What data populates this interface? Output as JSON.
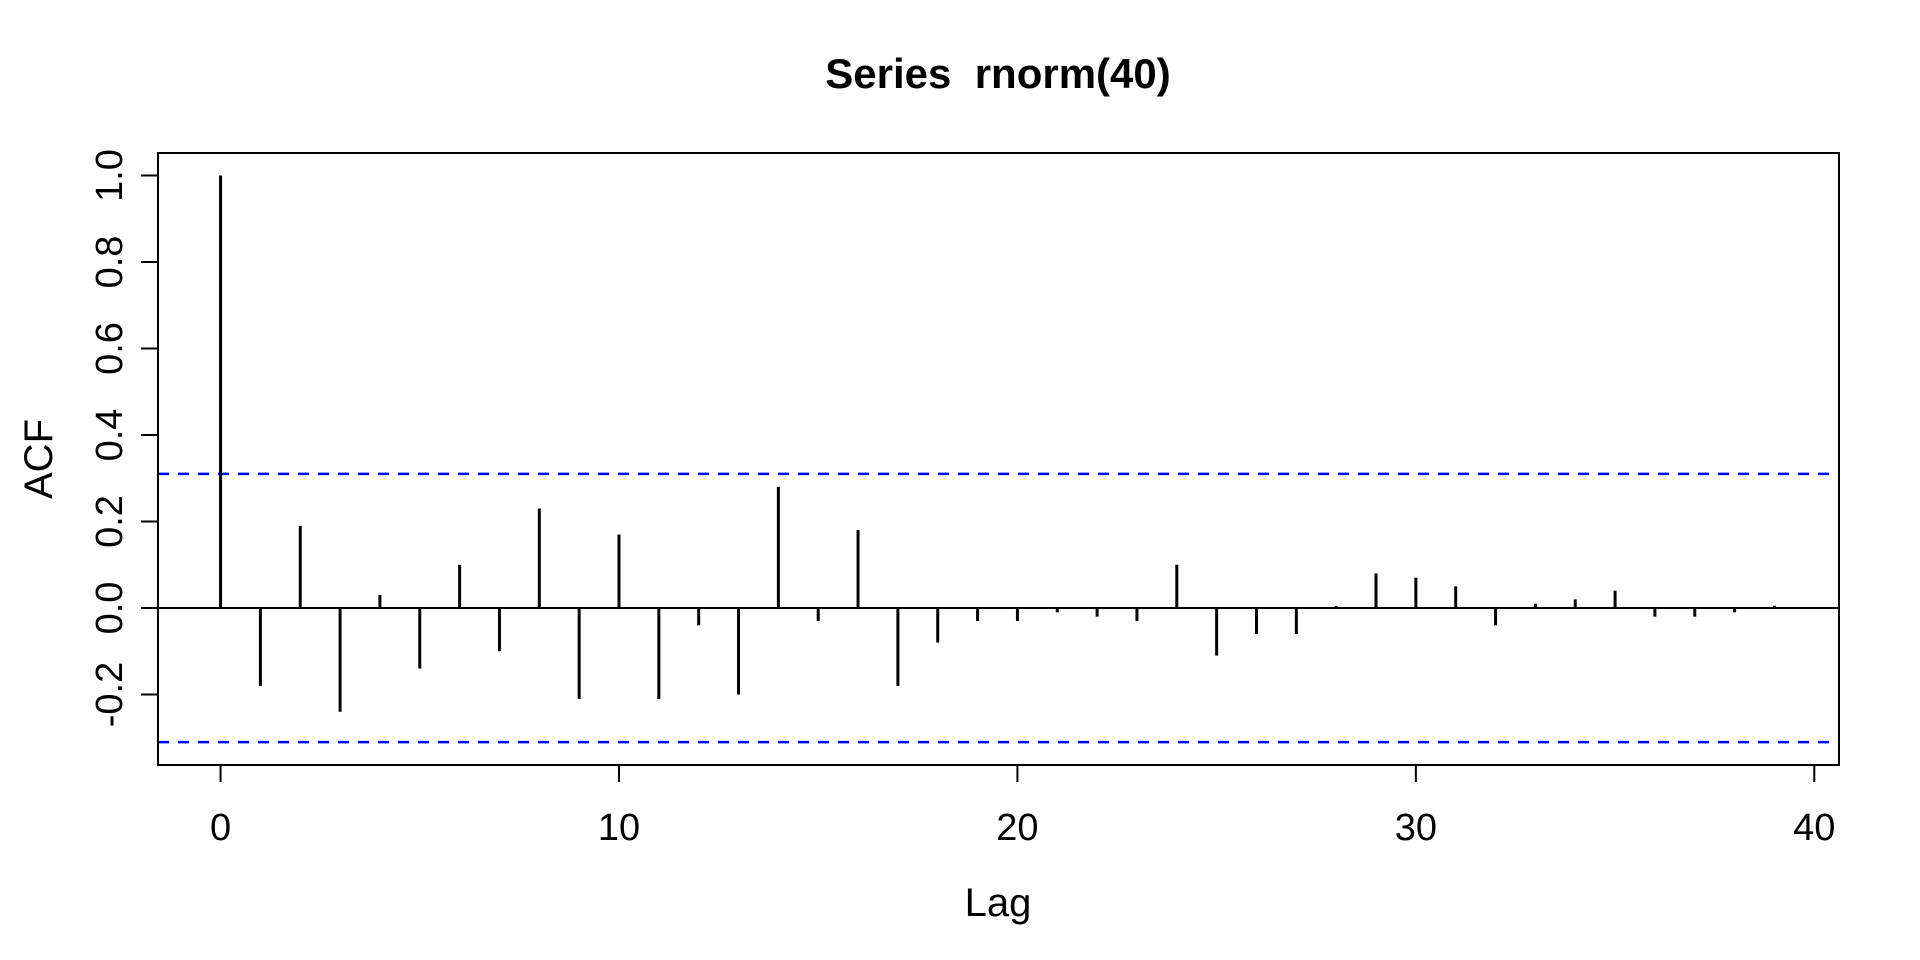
{
  "chart_data": {
    "type": "bar",
    "subtype": "acf-stem-plot",
    "title": "Series  rnorm(40)",
    "xlabel": "Lag",
    "ylabel": "ACF",
    "x_ticks": [
      0,
      10,
      20,
      30,
      40
    ],
    "x_tick_labels": [
      "0",
      "10",
      "20",
      "30",
      "40"
    ],
    "y_ticks": [
      -0.2,
      0.0,
      0.2,
      0.4,
      0.6,
      0.8,
      1.0
    ],
    "y_tick_labels": [
      "-0.2",
      "0.0",
      "0.2",
      "0.4",
      "0.6",
      "0.8",
      "1.0"
    ],
    "xlim": [
      -1.57,
      40.62
    ],
    "ylim": [
      -0.363,
      1.052
    ],
    "confidence_interval": 0.31,
    "ci_line_style": "dashed",
    "grid": false,
    "legend": false,
    "lags": [
      0,
      1,
      2,
      3,
      4,
      5,
      6,
      7,
      8,
      9,
      10,
      11,
      12,
      13,
      14,
      15,
      16,
      17,
      18,
      19,
      20,
      21,
      22,
      23,
      24,
      25,
      26,
      27,
      28,
      29,
      30,
      31,
      32,
      33,
      34,
      35,
      36,
      37,
      38,
      39
    ],
    "acf_values": [
      1.0,
      -0.18,
      0.19,
      -0.24,
      0.03,
      -0.14,
      0.1,
      -0.1,
      0.23,
      -0.21,
      0.17,
      -0.21,
      -0.04,
      -0.2,
      0.28,
      -0.03,
      0.18,
      -0.18,
      -0.08,
      -0.03,
      -0.03,
      -0.01,
      -0.02,
      -0.03,
      0.1,
      -0.11,
      -0.06,
      -0.06,
      0.005,
      0.08,
      0.07,
      0.05,
      -0.04,
      0.01,
      0.02,
      0.04,
      -0.02,
      -0.02,
      -0.01,
      0.005
    ],
    "colors": {
      "bars": "#000000",
      "axis": "#000000",
      "ci_line": "#0000FF",
      "background": "#ffffff",
      "title_text": "#000000"
    }
  }
}
